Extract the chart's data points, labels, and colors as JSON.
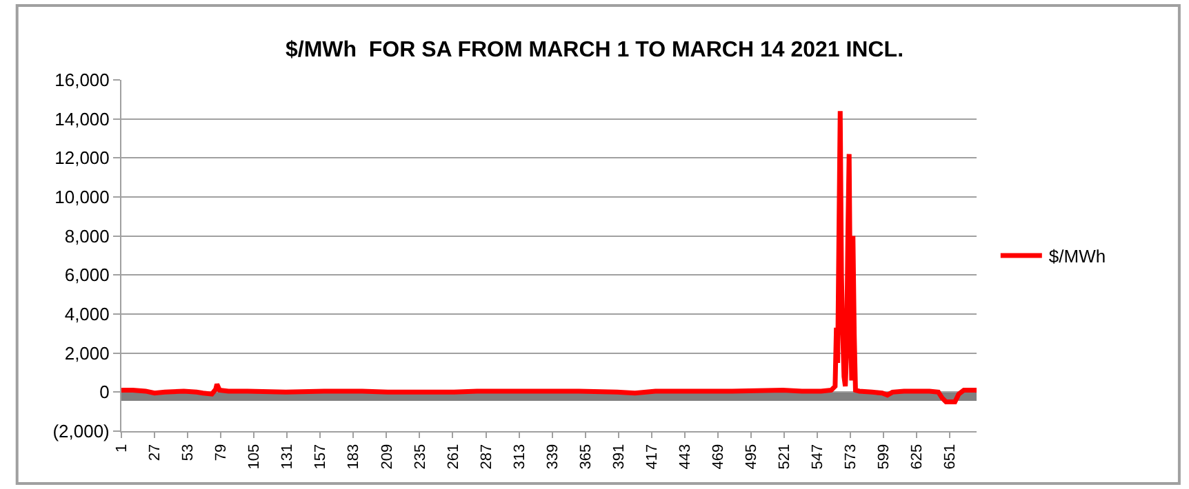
{
  "chart_data": {
    "type": "line",
    "title": "$/MWh  FOR SA FROM MARCH 1 TO MARCH 14 2021 INCL.",
    "x": [
      1,
      10,
      20,
      27,
      35,
      50,
      60,
      65,
      72,
      75,
      76,
      78,
      85,
      100,
      130,
      160,
      190,
      210,
      240,
      262,
      280,
      300,
      330,
      360,
      390,
      404,
      420,
      450,
      480,
      520,
      535,
      550,
      558,
      561,
      562,
      563,
      564,
      565,
      566,
      567,
      568,
      569,
      570,
      571,
      572,
      573,
      574,
      575,
      576,
      577,
      580,
      590,
      598,
      602,
      606,
      615,
      635,
      642,
      645,
      648,
      655,
      658,
      662,
      672
    ],
    "series": [
      {
        "name": "$/MWh",
        "color": "#ff0000",
        "values": [
          100,
          100,
          50,
          -50,
          0,
          50,
          0,
          -50,
          -100,
          150,
          400,
          100,
          50,
          50,
          0,
          50,
          50,
          0,
          0,
          0,
          50,
          50,
          50,
          50,
          0,
          -50,
          50,
          50,
          50,
          100,
          50,
          50,
          100,
          300,
          3300,
          1500,
          8000,
          14400,
          6000,
          3000,
          800,
          300,
          2000,
          8000,
          12200,
          4000,
          600,
          8000,
          3000,
          100,
          50,
          0,
          -50,
          -150,
          0,
          50,
          50,
          0,
          -300,
          -500,
          -500,
          -100,
          100,
          100
        ]
      }
    ],
    "xlim": [
      1,
      672
    ],
    "xticks": [
      1,
      27,
      53,
      79,
      105,
      131,
      157,
      183,
      209,
      235,
      261,
      287,
      313,
      339,
      365,
      391,
      417,
      443,
      469,
      495,
      521,
      547,
      573,
      599,
      625,
      651
    ],
    "ylim": [
      -2000,
      16000
    ],
    "yticks": [
      {
        "value": -2000,
        "label": "(2,000)"
      },
      {
        "value": 0,
        "label": "0"
      },
      {
        "value": 2000,
        "label": "2,000"
      },
      {
        "value": 4000,
        "label": "4,000"
      },
      {
        "value": 6000,
        "label": "6,000"
      },
      {
        "value": 8000,
        "label": "8,000"
      },
      {
        "value": 10000,
        "label": "10,000"
      },
      {
        "value": 12000,
        "label": "12,000"
      },
      {
        "value": 14000,
        "label": "14,000"
      },
      {
        "value": 16000,
        "label": "16,000"
      }
    ],
    "bands": [
      {
        "axis": "y",
        "from": -450,
        "to": 0,
        "color": "#808080"
      }
    ],
    "grid": "y",
    "legend": "right",
    "marker": "none",
    "line_style": "solid"
  }
}
